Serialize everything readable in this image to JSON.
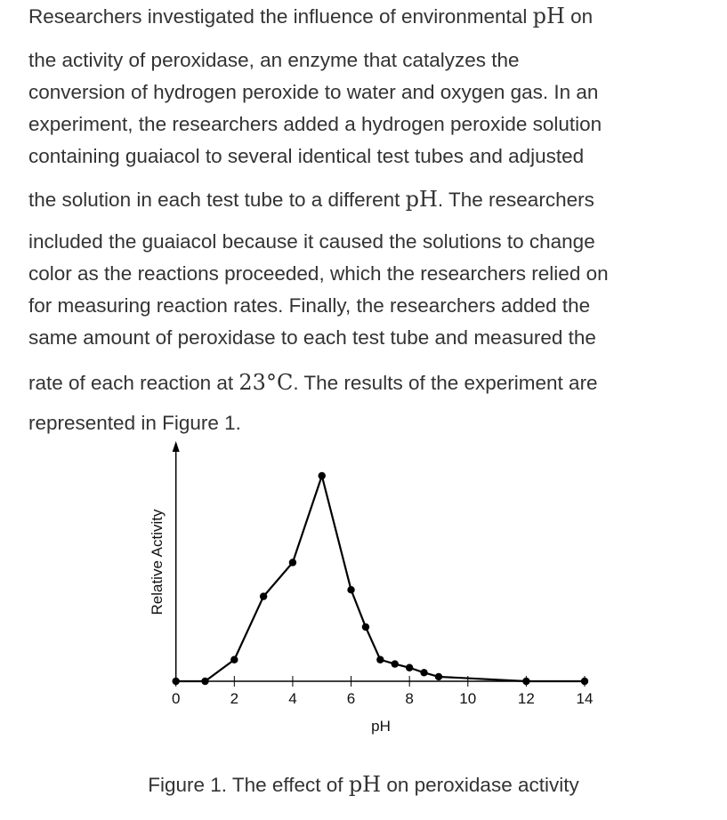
{
  "paragraph": [
    [
      [
        "Researchers investigated the influence of environmental ",
        ""
      ],
      [
        "pH",
        "math"
      ],
      [
        " on",
        ""
      ]
    ],
    [
      [
        "the activity of peroxidase, an enzyme that catalyzes the",
        ""
      ]
    ],
    [
      [
        "conversion of hydrogen peroxide to water and oxygen gas. In an",
        ""
      ]
    ],
    [
      [
        "experiment, the researchers added a hydrogen peroxide solution",
        ""
      ]
    ],
    [
      [
        "containing guaiacol to several identical test tubes and adjusted",
        ""
      ]
    ],
    [
      [
        "the solution in each test tube to a different ",
        ""
      ],
      [
        "pH",
        "math"
      ],
      [
        ". The researchers",
        ""
      ]
    ],
    [
      [
        "included the guaiacol because it caused the solutions to change",
        ""
      ]
    ],
    [
      [
        "color as the reactions proceeded, which the researchers relied on",
        ""
      ]
    ],
    [
      [
        "for measuring reaction rates. Finally, the researchers added the",
        ""
      ]
    ],
    [
      [
        "same amount of peroxidase to each test tube and measured the",
        ""
      ]
    ],
    [
      [
        "rate of each reaction at ",
        ""
      ],
      [
        "23°C",
        "math"
      ],
      [
        ". The results of the experiment are",
        ""
      ]
    ],
    [
      [
        "represented in Figure 1.",
        ""
      ]
    ]
  ],
  "caption": [
    [
      "Figure 1. The effect of ",
      ""
    ],
    [
      "pH",
      "math"
    ],
    [
      " on peroxidase activity",
      ""
    ]
  ],
  "chart_data": {
    "type": "line",
    "title": "",
    "xlabel": "pH",
    "ylabel": "Relative Activity",
    "xlim": [
      0,
      14
    ],
    "xticks": [
      0,
      2,
      4,
      6,
      8,
      10,
      12,
      14
    ],
    "grid": false,
    "x": [
      0,
      1,
      2,
      3,
      4,
      5,
      6,
      6.5,
      7,
      7.5,
      8,
      8.5,
      9,
      12,
      14
    ],
    "y": [
      0,
      0,
      10.5,
      41.3,
      57.8,
      100,
      44.5,
      26.4,
      10.5,
      8.4,
      6.6,
      4.2,
      2.2,
      0,
      0
    ],
    "color": "#000000"
  }
}
